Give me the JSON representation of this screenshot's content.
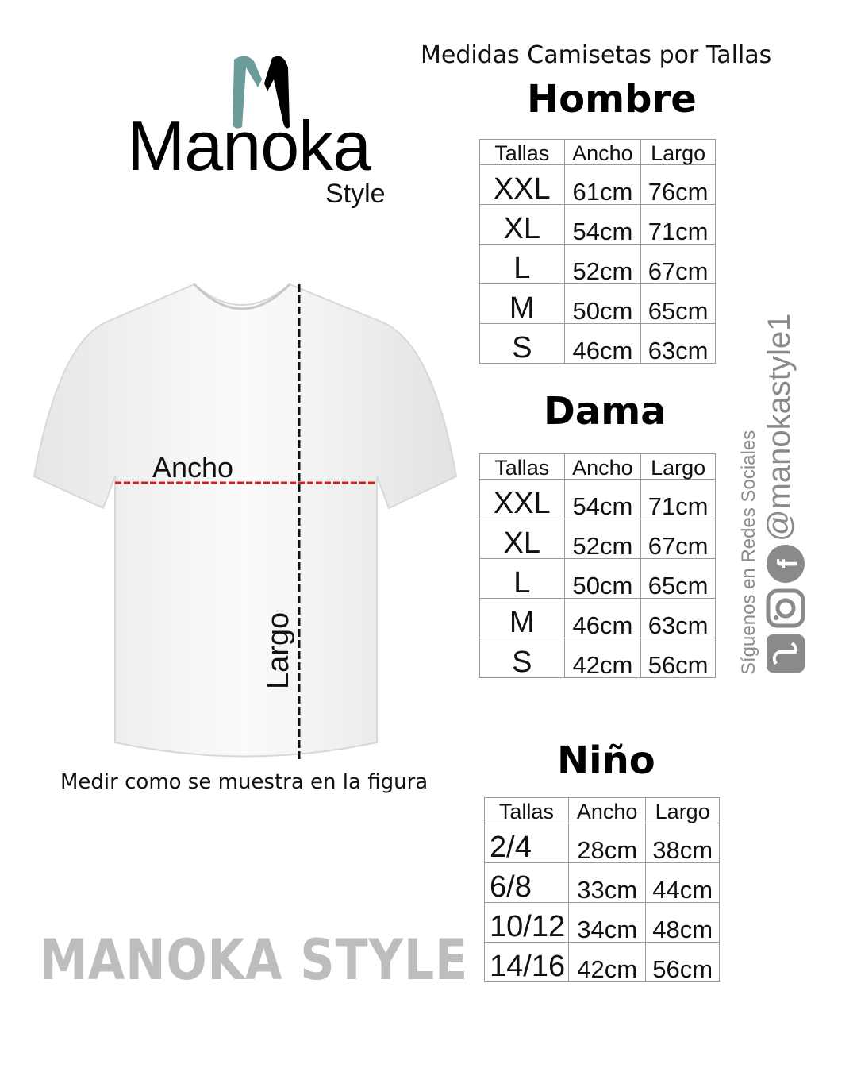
{
  "logo": {
    "word": "Manoka",
    "sub": "Style",
    "colors": {
      "teal": "#6a9c9a",
      "black": "#000000"
    }
  },
  "subtitle": "Medidas Camisetas por Tallas",
  "figure": {
    "ancho_label": "Ancho",
    "largo_label": "Largo",
    "caption": "Medir como se muestra en la figura",
    "line_color": "#d62020"
  },
  "brand_text": "MANOKA STYLE",
  "social": {
    "follow": "Síguenos en Redes Sociales",
    "handle": "@manokastyle1",
    "icons": [
      "tiktok-icon",
      "instagram-icon",
      "facebook-icon"
    ]
  },
  "tables": {
    "hombre": {
      "title": "Hombre",
      "headers": [
        "Tallas",
        "Ancho",
        "Largo"
      ],
      "rows": [
        [
          "XXL",
          "61cm",
          "76cm"
        ],
        [
          "XL",
          "54cm",
          "71cm"
        ],
        [
          "L",
          "52cm",
          "67cm"
        ],
        [
          "M",
          "50cm",
          "65cm"
        ],
        [
          "S",
          "46cm",
          "63cm"
        ]
      ]
    },
    "dama": {
      "title": "Dama",
      "headers": [
        "Tallas",
        "Ancho",
        "Largo"
      ],
      "rows": [
        [
          "XXL",
          "54cm",
          "71cm"
        ],
        [
          "XL",
          "52cm",
          "67cm"
        ],
        [
          "L",
          "50cm",
          "65cm"
        ],
        [
          "M",
          "46cm",
          "63cm"
        ],
        [
          "S",
          "42cm",
          "56cm"
        ]
      ]
    },
    "nino": {
      "title": "Niño",
      "headers": [
        "Tallas",
        "Ancho",
        "Largo"
      ],
      "rows": [
        [
          "2/4",
          "28cm",
          "38cm"
        ],
        [
          "6/8",
          "33cm",
          "44cm"
        ],
        [
          "10/12",
          "34cm",
          "48cm"
        ],
        [
          "14/16",
          "42cm",
          "56cm"
        ]
      ]
    }
  }
}
